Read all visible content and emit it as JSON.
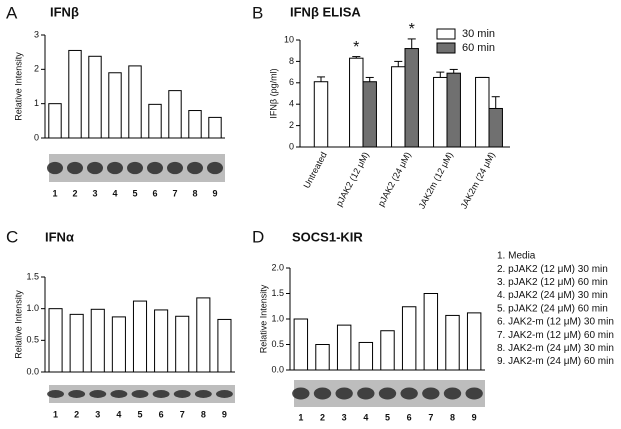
{
  "chart_data": [
    {
      "type": "bar",
      "panel_label": "A",
      "title": "IFNβ",
      "ylabel": "Relative Intensity",
      "categories": [
        "1",
        "2",
        "3",
        "4",
        "5",
        "6",
        "7",
        "8",
        "9"
      ],
      "values": [
        1.0,
        2.55,
        2.38,
        1.9,
        2.1,
        0.98,
        1.38,
        0.8,
        0.6
      ],
      "color": "#ffffff",
      "ylim": [
        0,
        3
      ],
      "yticks": [
        0,
        1,
        2,
        3
      ]
    },
    {
      "type": "grouped_bar",
      "panel_label": "B",
      "title": "IFNβ ELISA",
      "ylabel": "IFNβ (pg/ml)",
      "categories": [
        "Untreated",
        "pJAK2 (12 μM)",
        "pJAK2 (24 μM)",
        "JAK2m (12 μM)",
        "JAK2m (24 μM)"
      ],
      "series": [
        {
          "name": "30 min",
          "color": "#ffffff",
          "values": [
            6.1,
            8.3,
            7.5,
            6.5,
            6.5
          ],
          "errors": [
            0.45,
            0.15,
            0.5,
            0.5,
            0
          ]
        },
        {
          "name": "60 min",
          "color": "#707070",
          "values": [
            null,
            6.1,
            9.2,
            6.9,
            3.6
          ],
          "errors": [
            null,
            0.4,
            0.9,
            0.35,
            1.1
          ]
        }
      ],
      "annotations": [
        {
          "text": "*",
          "category": 1,
          "series": 0
        },
        {
          "text": "*",
          "category": 2,
          "series": 1
        }
      ],
      "ylim": [
        0,
        10
      ],
      "yticks": [
        0,
        2,
        4,
        6,
        8,
        10
      ]
    },
    {
      "type": "bar",
      "panel_label": "C",
      "title": "IFNα",
      "ylabel": "Relative Intensity",
      "categories": [
        "1",
        "2",
        "3",
        "4",
        "5",
        "6",
        "7",
        "8",
        "9"
      ],
      "values": [
        1.0,
        0.91,
        0.99,
        0.87,
        1.12,
        0.98,
        0.88,
        1.17,
        0.83
      ],
      "color": "#ffffff",
      "ylim": [
        0,
        1.5
      ],
      "yticks": [
        {
          "value": 0,
          "label": "0.0"
        },
        0.5,
        {
          "value": 1,
          "label": "1.0"
        },
        1.5
      ]
    },
    {
      "type": "bar",
      "panel_label": "D",
      "title": "SOCS1-KIR",
      "ylabel": "Relative Intensity",
      "categories": [
        "1",
        "2",
        "3",
        "4",
        "5",
        "6",
        "7",
        "8",
        "9"
      ],
      "values": [
        1.0,
        0.5,
        0.88,
        0.54,
        0.77,
        1.24,
        1.5,
        1.07,
        1.12
      ],
      "color": "#ffffff",
      "ylim": [
        0,
        2
      ],
      "yticks": [
        {
          "value": 0,
          "label": "0.0"
        },
        0.5,
        {
          "value": 1,
          "label": "1.0"
        },
        1.5,
        {
          "value": 2,
          "label": "2.0"
        }
      ],
      "key": [
        "1. Media",
        "2. pJAK2 (12 μM) 30 min",
        "3. pJAK2 (12 μM) 60 min",
        "4. pJAK2 (24 μM) 30 min",
        "5. pJAK2 (24 μM) 60 min",
        "6. JAK2-m (12 μM) 30 min",
        "7. JAK2-m (12 μM) 60 min",
        "8. JAK2-m (24 μM) 30 min",
        "9. JAK2-m (24 μM) 60 min"
      ]
    }
  ]
}
